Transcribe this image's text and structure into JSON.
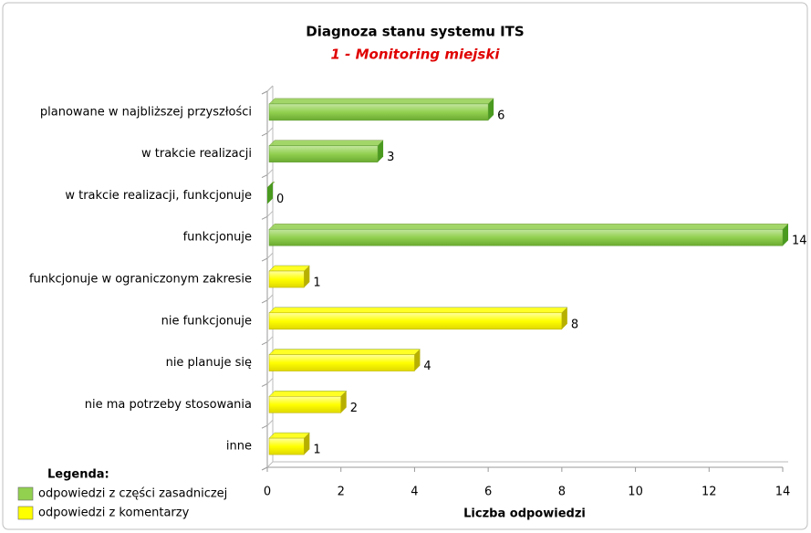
{
  "chart_data": {
    "type": "bar",
    "orientation": "horizontal",
    "title": "Diagnoza stanu systemu ITS",
    "subtitle": "1 - Monitoring miejski",
    "x_label": "Liczba odpowiedzi",
    "legend_title": "Legenda:",
    "categories": [
      "planowane w najbliższej przyszłości",
      "w trakcie realizacji",
      "w trakcie realizacji, funkcjonuje",
      "funkcjonuje",
      "funkcjonuje w ograniczonym zakresie",
      "nie funkcjonuje",
      "nie planuje się",
      "nie ma potrzeby stosowania",
      "inne"
    ],
    "series": [
      {
        "name": "odpowiedzi z części zasadniczej",
        "color": "#92d050",
        "values": [
          6,
          3,
          0,
          14,
          null,
          null,
          null,
          null,
          null
        ]
      },
      {
        "name": "odpowiedzi z komentarzy",
        "color": "#ffff00",
        "values": [
          null,
          null,
          null,
          null,
          1,
          8,
          4,
          2,
          1
        ]
      }
    ],
    "xlim": [
      0,
      14
    ],
    "xticks": [
      0,
      2,
      4,
      6,
      8,
      10,
      12,
      14
    ],
    "legend": "bottom-left"
  }
}
